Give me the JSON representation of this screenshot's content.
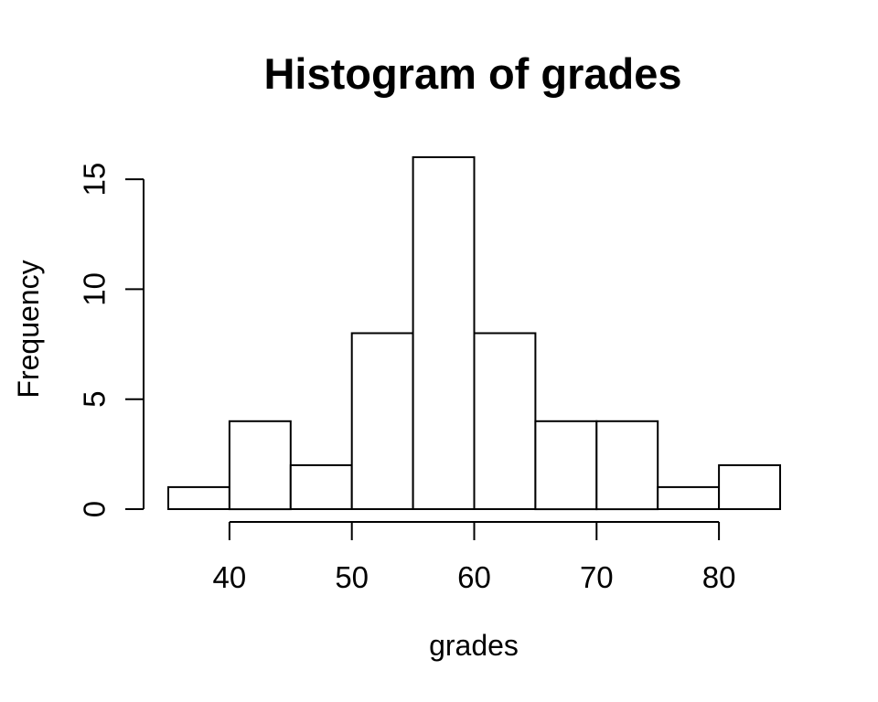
{
  "figure": {
    "background": "#ffffff"
  },
  "chart_data": {
    "type": "bar",
    "subtype": "histogram",
    "title": "Histogram of grades",
    "xlabel": "grades",
    "ylabel": "Frequency",
    "bin_width": 5,
    "bin_edges": [
      35,
      40,
      45,
      50,
      55,
      60,
      65,
      70,
      75,
      80,
      85
    ],
    "bin_labels": [
      "35-40",
      "40-45",
      "45-50",
      "50-55",
      "55-60",
      "60-65",
      "65-70",
      "70-75",
      "75-80",
      "80-85"
    ],
    "frequencies": [
      1,
      4,
      2,
      8,
      16,
      8,
      4,
      4,
      1,
      2
    ],
    "n_total": 50,
    "x_ticks": [
      40,
      50,
      60,
      70,
      80
    ],
    "y_ticks": [
      0,
      5,
      10,
      15
    ],
    "xlim": [
      35,
      85
    ],
    "ylim": [
      0,
      16
    ],
    "grid": false,
    "legend": "none",
    "style": {
      "bar_fill": "#ffffff",
      "bar_stroke": "#000000",
      "axis_color": "#000000",
      "text_color": "#000000",
      "stroke_width": 2
    }
  }
}
